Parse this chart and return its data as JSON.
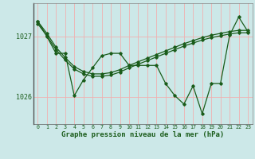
{
  "xlabel": "Graphe pression niveau de la mer (hPa)",
  "background_color": "#cce8e8",
  "grid_color": "#f0b0b0",
  "line_color": "#1a5c1a",
  "hours": [
    0,
    1,
    2,
    3,
    4,
    5,
    6,
    7,
    8,
    9,
    10,
    11,
    12,
    13,
    14,
    15,
    16,
    17,
    18,
    19,
    20,
    21,
    22,
    23
  ],
  "line_smooth1": [
    1027.25,
    1027.05,
    1026.82,
    1026.65,
    1026.5,
    1026.42,
    1026.38,
    1026.38,
    1026.4,
    1026.45,
    1026.52,
    1026.58,
    1026.64,
    1026.7,
    1026.76,
    1026.82,
    1026.88,
    1026.93,
    1026.98,
    1027.02,
    1027.05,
    1027.08,
    1027.1,
    1027.1
  ],
  "line_jagged": [
    1027.25,
    1027.0,
    1026.72,
    1026.72,
    1026.02,
    1026.28,
    1026.48,
    1026.68,
    1026.72,
    1026.72,
    1026.52,
    1026.52,
    1026.52,
    1026.52,
    1026.22,
    1026.02,
    1025.88,
    1026.18,
    1025.72,
    1026.22,
    1026.22,
    1027.02,
    1027.32,
    1027.08
  ],
  "ylim": [
    1025.55,
    1027.55
  ],
  "yticks": [
    1026.0,
    1027.0
  ],
  "figsize": [
    3.2,
    2.0
  ],
  "dpi": 100
}
